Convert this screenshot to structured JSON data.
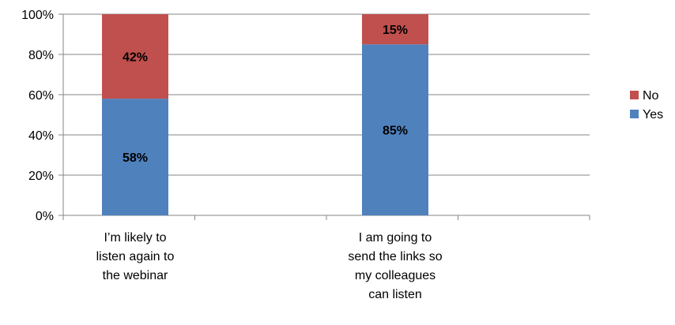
{
  "chart_data": {
    "type": "bar",
    "stacked": true,
    "percent": true,
    "categories": [
      "I’m likely to listen again  to the webinar",
      "I am going to send the links so my colleagues can listen"
    ],
    "category_lines": [
      [
        "I’m likely to",
        "listen again  to",
        "the webinar"
      ],
      [
        "I am going to",
        "send the links so",
        "my colleagues",
        "can listen"
      ]
    ],
    "series": [
      {
        "name": "Yes",
        "values": [
          58,
          85
        ],
        "labels": [
          "58%",
          "85%"
        ],
        "color": "#4F81BD"
      },
      {
        "name": "No",
        "values": [
          42,
          15
        ],
        "labels": [
          "42%",
          "15%"
        ],
        "color": "#C0504D"
      }
    ],
    "y_ticks": [
      "0%",
      "20%",
      "40%",
      "60%",
      "80%",
      "100%"
    ],
    "ylim": [
      0,
      100
    ],
    "grid": true,
    "legend": "right",
    "legend_order": [
      "No",
      "Yes"
    ]
  }
}
